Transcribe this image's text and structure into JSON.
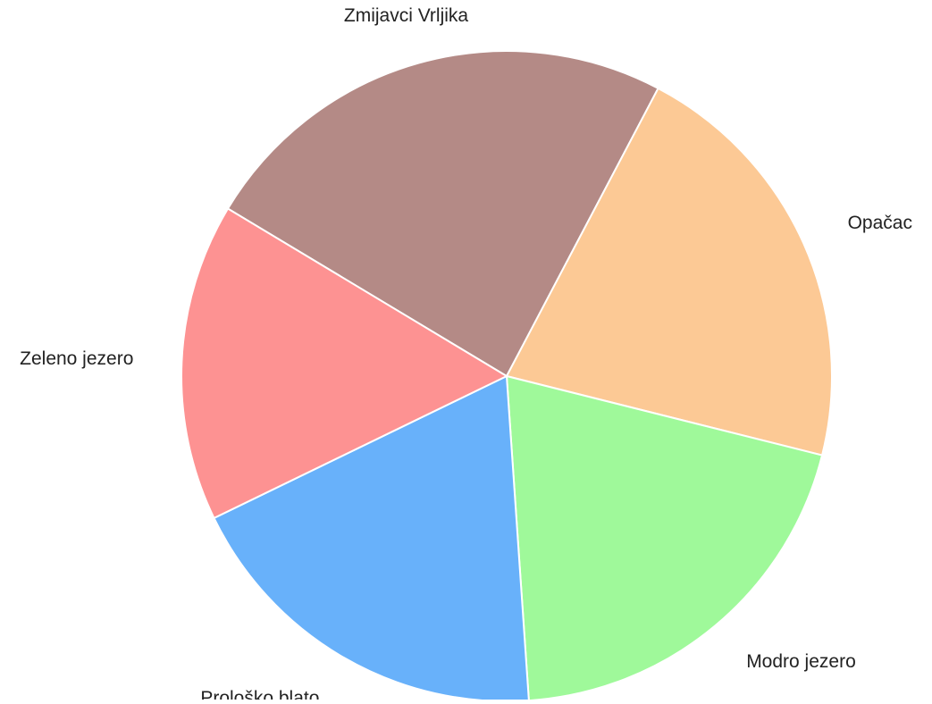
{
  "chart_data": {
    "type": "pie",
    "title": "",
    "slices": [
      {
        "label": "Zmijavci Vrljika",
        "value": 24.1,
        "color": "#B48A86"
      },
      {
        "label": "Opačac",
        "value": 21.2,
        "color": "#FCC995"
      },
      {
        "label": "Modro jezero",
        "value": 20.0,
        "color": "#9FF99A"
      },
      {
        "label": "Prološko blato",
        "value": 18.9,
        "color": "#68B1FA"
      },
      {
        "label": "Zeleno jezero",
        "value": 15.8,
        "color": "#FD9292"
      }
    ],
    "legend": "none",
    "start": "top, clockwise"
  }
}
